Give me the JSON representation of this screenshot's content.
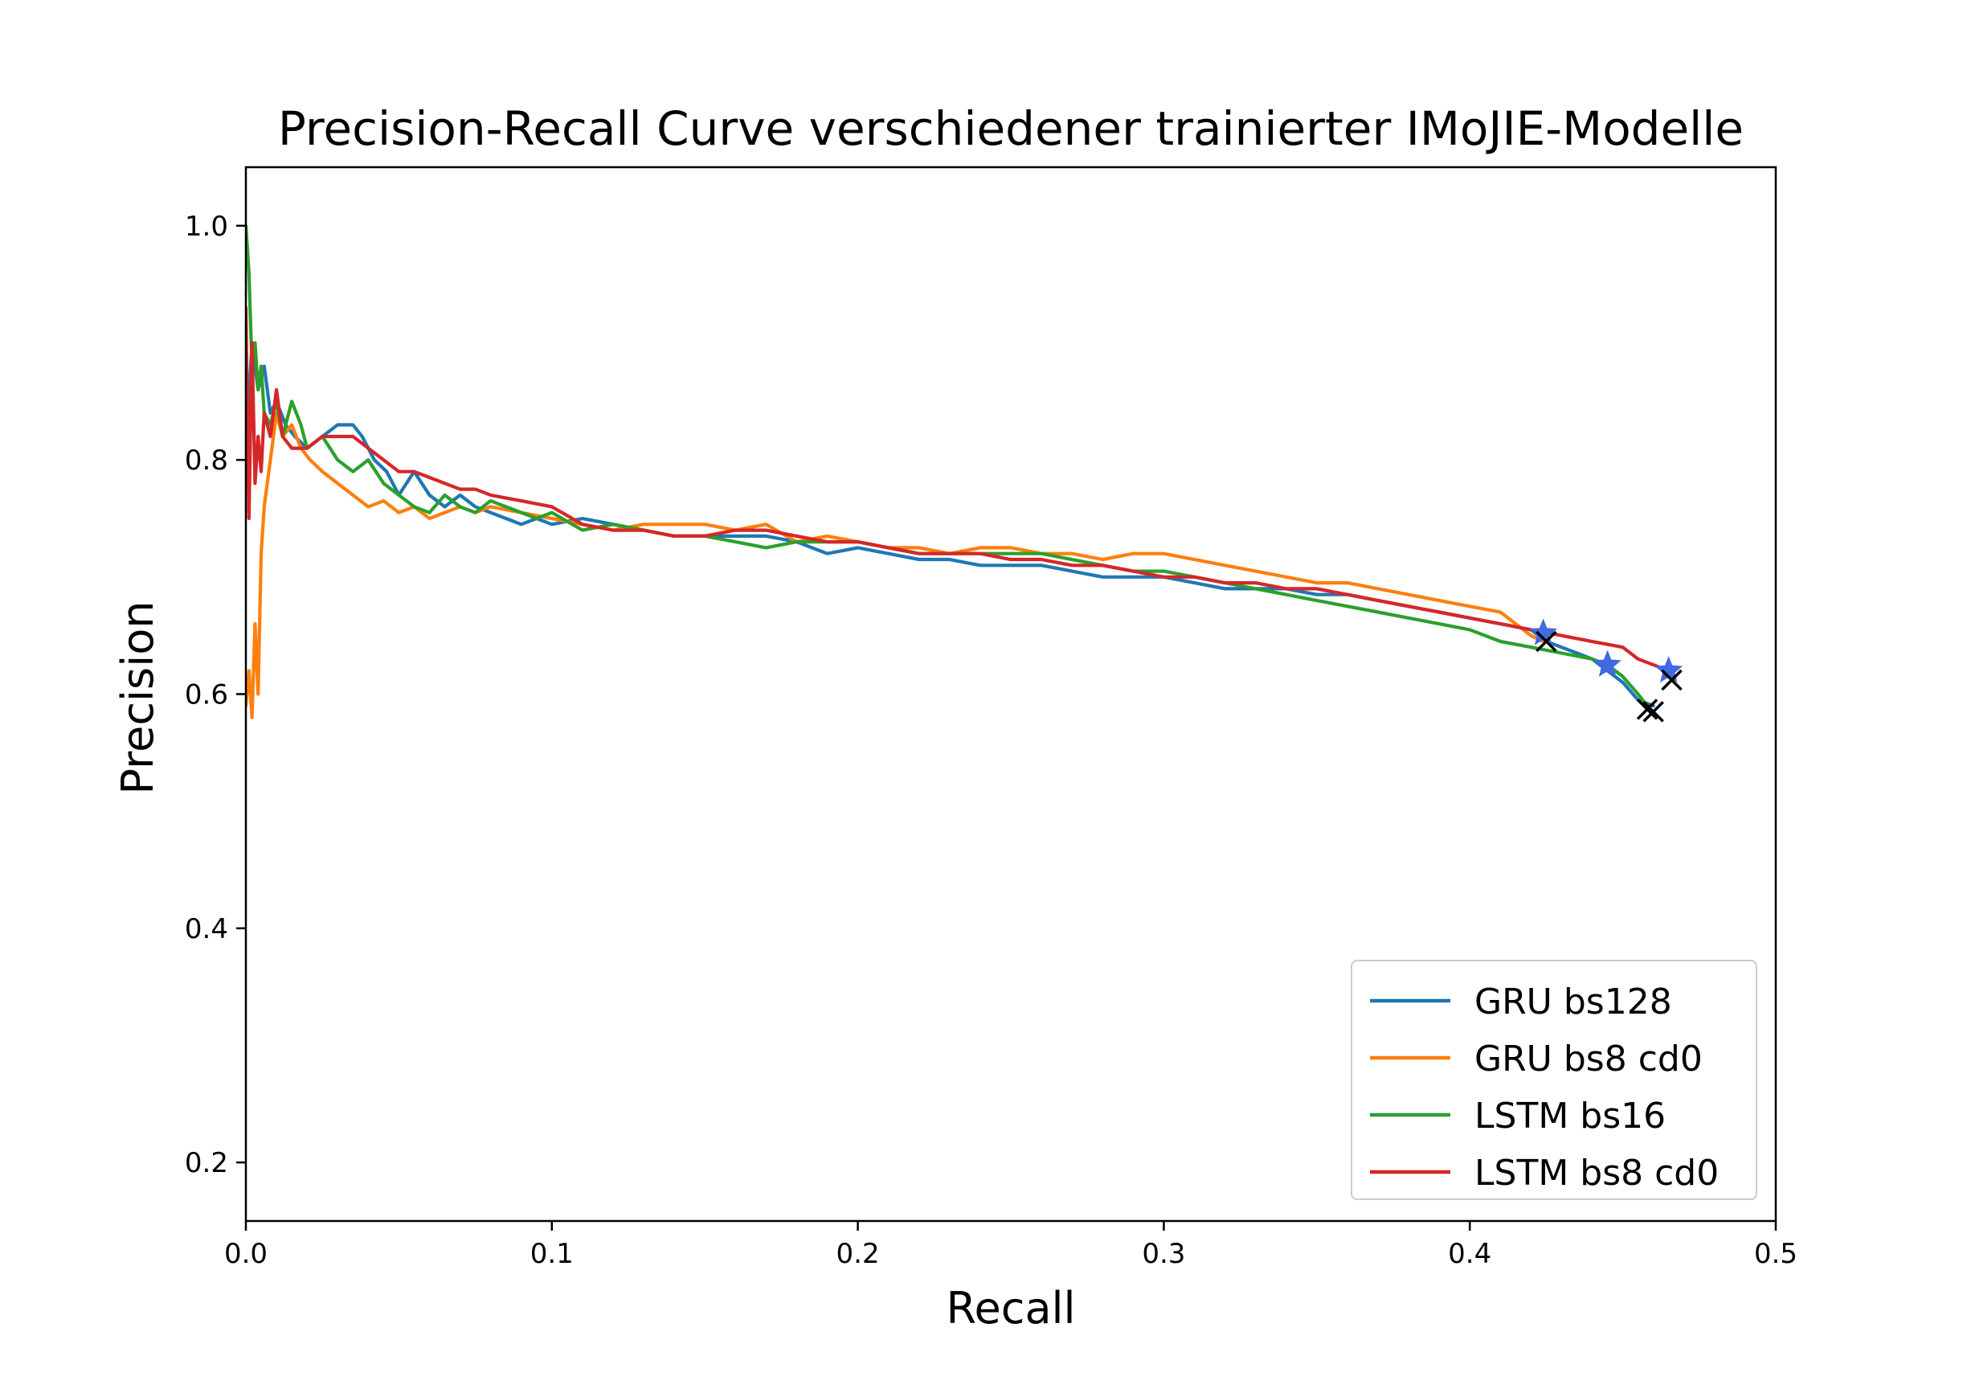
{
  "chart_data": {
    "type": "line",
    "title": "Precision-Recall Curve verschiedener trainierter IMoJIE-Modelle",
    "xlabel": "Recall",
    "ylabel": "Precision",
    "xlim": [
      0.0,
      0.5
    ],
    "ylim": [
      0.15,
      1.05
    ],
    "xticks": [
      0.0,
      0.1,
      0.2,
      0.3,
      0.4,
      0.5
    ],
    "xtick_labels": [
      "0.0",
      "0.1",
      "0.2",
      "0.3",
      "0.4",
      "0.5"
    ],
    "yticks": [
      0.2,
      0.4,
      0.6,
      0.8,
      1.0
    ],
    "ytick_labels": [
      "0.2",
      "0.4",
      "0.6",
      "0.8",
      "1.0"
    ],
    "grid": false,
    "legend_position": "lower right",
    "series": [
      {
        "name": "GRU bs128",
        "color": "#1f77b4",
        "x": [
          0.0,
          0.002,
          0.004,
          0.006,
          0.008,
          0.01,
          0.013,
          0.016,
          0.02,
          0.025,
          0.03,
          0.035,
          0.038,
          0.042,
          0.046,
          0.05,
          0.055,
          0.06,
          0.065,
          0.07,
          0.075,
          0.08,
          0.085,
          0.09,
          0.095,
          0.1,
          0.11,
          0.12,
          0.13,
          0.14,
          0.15,
          0.16,
          0.17,
          0.18,
          0.19,
          0.2,
          0.21,
          0.22,
          0.23,
          0.24,
          0.25,
          0.26,
          0.27,
          0.28,
          0.29,
          0.3,
          0.31,
          0.32,
          0.33,
          0.34,
          0.35,
          0.36,
          0.37,
          0.38,
          0.39,
          0.4,
          0.41,
          0.42,
          0.425,
          0.43,
          0.435,
          0.44,
          0.445,
          0.45,
          0.455,
          0.46
        ],
        "y": [
          0.8,
          0.9,
          0.86,
          0.88,
          0.84,
          0.85,
          0.83,
          0.82,
          0.81,
          0.82,
          0.83,
          0.83,
          0.82,
          0.8,
          0.79,
          0.77,
          0.79,
          0.77,
          0.76,
          0.77,
          0.76,
          0.755,
          0.75,
          0.745,
          0.75,
          0.745,
          0.75,
          0.745,
          0.74,
          0.735,
          0.735,
          0.735,
          0.735,
          0.73,
          0.72,
          0.725,
          0.72,
          0.715,
          0.715,
          0.71,
          0.71,
          0.71,
          0.705,
          0.7,
          0.7,
          0.7,
          0.695,
          0.69,
          0.69,
          0.69,
          0.685,
          0.685,
          0.68,
          0.675,
          0.67,
          0.665,
          0.66,
          0.655,
          0.645,
          0.64,
          0.635,
          0.63,
          0.62,
          0.61,
          0.595,
          0.59
        ]
      },
      {
        "name": "GRU bs8 cd0",
        "color": "#ff7f0e",
        "x": [
          0.0,
          0.001,
          0.002,
          0.003,
          0.004,
          0.005,
          0.006,
          0.008,
          0.01,
          0.012,
          0.015,
          0.018,
          0.021,
          0.025,
          0.03,
          0.035,
          0.04,
          0.045,
          0.05,
          0.055,
          0.06,
          0.065,
          0.07,
          0.075,
          0.08,
          0.09,
          0.1,
          0.11,
          0.12,
          0.13,
          0.14,
          0.15,
          0.16,
          0.17,
          0.18,
          0.19,
          0.2,
          0.21,
          0.22,
          0.23,
          0.24,
          0.25,
          0.26,
          0.27,
          0.28,
          0.29,
          0.3,
          0.31,
          0.32,
          0.33,
          0.34,
          0.35,
          0.36,
          0.37,
          0.38,
          0.39,
          0.4,
          0.41,
          0.415,
          0.42,
          0.424
        ],
        "y": [
          0.59,
          0.62,
          0.58,
          0.66,
          0.6,
          0.72,
          0.76,
          0.8,
          0.84,
          0.82,
          0.83,
          0.81,
          0.8,
          0.79,
          0.78,
          0.77,
          0.76,
          0.765,
          0.755,
          0.76,
          0.75,
          0.755,
          0.76,
          0.755,
          0.76,
          0.755,
          0.75,
          0.745,
          0.74,
          0.745,
          0.745,
          0.745,
          0.74,
          0.745,
          0.73,
          0.735,
          0.73,
          0.725,
          0.725,
          0.72,
          0.725,
          0.725,
          0.72,
          0.72,
          0.715,
          0.72,
          0.72,
          0.715,
          0.71,
          0.705,
          0.7,
          0.695,
          0.695,
          0.69,
          0.685,
          0.68,
          0.675,
          0.67,
          0.66,
          0.65,
          0.645
        ]
      },
      {
        "name": "LSTM bs16",
        "color": "#2ca02c",
        "x": [
          0.0,
          0.001,
          0.002,
          0.003,
          0.004,
          0.005,
          0.006,
          0.008,
          0.01,
          0.012,
          0.015,
          0.018,
          0.02,
          0.025,
          0.03,
          0.035,
          0.04,
          0.045,
          0.05,
          0.055,
          0.06,
          0.065,
          0.07,
          0.075,
          0.08,
          0.085,
          0.09,
          0.095,
          0.1,
          0.11,
          0.12,
          0.13,
          0.14,
          0.15,
          0.16,
          0.17,
          0.18,
          0.19,
          0.2,
          0.21,
          0.22,
          0.23,
          0.24,
          0.25,
          0.26,
          0.27,
          0.28,
          0.29,
          0.3,
          0.31,
          0.32,
          0.33,
          0.34,
          0.35,
          0.36,
          0.37,
          0.38,
          0.39,
          0.4,
          0.41,
          0.42,
          0.43,
          0.44,
          0.445,
          0.45,
          0.455,
          0.458
        ],
        "y": [
          1.0,
          0.96,
          0.88,
          0.9,
          0.86,
          0.88,
          0.84,
          0.83,
          0.85,
          0.82,
          0.85,
          0.83,
          0.81,
          0.82,
          0.8,
          0.79,
          0.8,
          0.78,
          0.77,
          0.76,
          0.755,
          0.77,
          0.76,
          0.755,
          0.765,
          0.76,
          0.755,
          0.75,
          0.755,
          0.74,
          0.745,
          0.74,
          0.735,
          0.735,
          0.73,
          0.725,
          0.73,
          0.73,
          0.73,
          0.725,
          0.72,
          0.72,
          0.72,
          0.72,
          0.72,
          0.715,
          0.71,
          0.705,
          0.705,
          0.7,
          0.695,
          0.69,
          0.685,
          0.68,
          0.675,
          0.67,
          0.665,
          0.66,
          0.655,
          0.645,
          0.64,
          0.635,
          0.63,
          0.625,
          0.615,
          0.6,
          0.59
        ]
      },
      {
        "name": "LSTM bs8 cd0",
        "color": "#d62728",
        "x": [
          0.0,
          0.001,
          0.002,
          0.003,
          0.004,
          0.005,
          0.006,
          0.008,
          0.01,
          0.012,
          0.015,
          0.02,
          0.025,
          0.03,
          0.035,
          0.04,
          0.045,
          0.05,
          0.055,
          0.06,
          0.065,
          0.07,
          0.075,
          0.08,
          0.09,
          0.1,
          0.11,
          0.12,
          0.13,
          0.14,
          0.15,
          0.16,
          0.17,
          0.18,
          0.19,
          0.2,
          0.21,
          0.22,
          0.23,
          0.24,
          0.25,
          0.26,
          0.27,
          0.28,
          0.29,
          0.3,
          0.31,
          0.32,
          0.33,
          0.34,
          0.35,
          0.36,
          0.37,
          0.38,
          0.39,
          0.4,
          0.41,
          0.42,
          0.43,
          0.44,
          0.45,
          0.455,
          0.46,
          0.465
        ],
        "y": [
          0.93,
          0.75,
          0.9,
          0.78,
          0.82,
          0.79,
          0.84,
          0.82,
          0.86,
          0.82,
          0.81,
          0.81,
          0.82,
          0.82,
          0.82,
          0.81,
          0.8,
          0.79,
          0.79,
          0.785,
          0.78,
          0.775,
          0.775,
          0.77,
          0.765,
          0.76,
          0.745,
          0.74,
          0.74,
          0.735,
          0.735,
          0.74,
          0.74,
          0.735,
          0.73,
          0.73,
          0.725,
          0.72,
          0.72,
          0.72,
          0.715,
          0.715,
          0.71,
          0.71,
          0.705,
          0.7,
          0.7,
          0.695,
          0.695,
          0.69,
          0.69,
          0.685,
          0.68,
          0.675,
          0.67,
          0.665,
          0.66,
          0.655,
          0.65,
          0.645,
          0.64,
          0.63,
          0.625,
          0.62
        ]
      }
    ],
    "markers": [
      {
        "symbol": "star",
        "color": "#4169e1",
        "x": 0.424,
        "y": 0.652
      },
      {
        "symbol": "star",
        "color": "#4169e1",
        "x": 0.445,
        "y": 0.625
      },
      {
        "symbol": "star",
        "color": "#4169e1",
        "x": 0.465,
        "y": 0.62
      },
      {
        "symbol": "x",
        "color": "#000000",
        "x": 0.425,
        "y": 0.645
      },
      {
        "symbol": "x",
        "color": "#000000",
        "x": 0.458,
        "y": 0.587
      },
      {
        "symbol": "x",
        "color": "#000000",
        "x": 0.46,
        "y": 0.585
      },
      {
        "symbol": "x",
        "color": "#000000",
        "x": 0.466,
        "y": 0.612
      }
    ]
  }
}
